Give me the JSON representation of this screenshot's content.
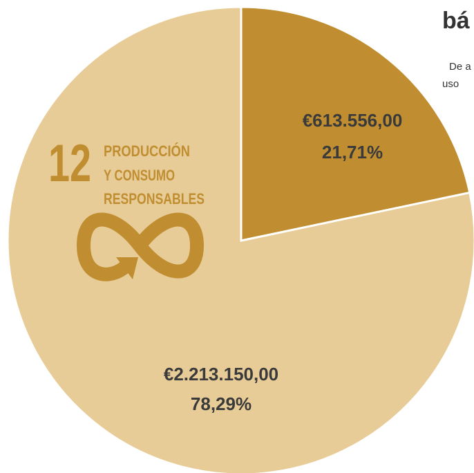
{
  "chart_data": {
    "type": "pie",
    "categories": [
      null,
      null
    ],
    "values": [
      613556,
      2213150
    ],
    "value_labels": [
      "€613.556,00",
      "€2.213.150,00"
    ],
    "percentages": [
      21.71,
      78.29
    ],
    "percentage_labels": [
      "21,71%",
      "78,29%"
    ],
    "colors": [
      "#c08e30",
      "#e8cc98"
    ]
  },
  "heading": "bá",
  "body_lines": [
    "De a",
    "uso"
  ],
  "icon": {
    "number": "12",
    "lines": [
      "PRODUCCIÓN",
      "Y CONSUMO",
      "RESPONSABLES"
    ]
  }
}
